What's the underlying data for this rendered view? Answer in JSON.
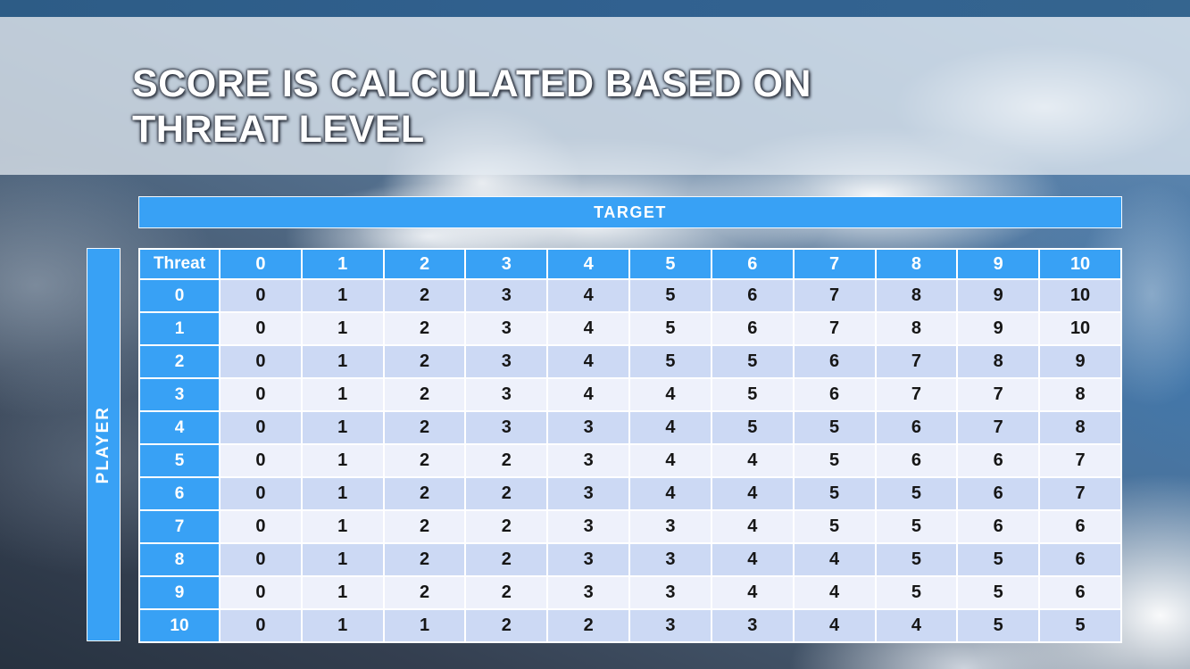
{
  "slide": {
    "title": "SCORE IS CALCULATED BASED ON THREAT LEVEL"
  },
  "chart_data": {
    "type": "table",
    "title": "SCORE IS CALCULATED BASED ON THREAT LEVEL",
    "column_axis_label": "TARGET",
    "row_axis_label": "PLAYER",
    "corner_label": "Threat",
    "column_headers": [
      "0",
      "1",
      "2",
      "3",
      "4",
      "5",
      "6",
      "7",
      "8",
      "9",
      "10"
    ],
    "row_headers": [
      "0",
      "1",
      "2",
      "3",
      "4",
      "5",
      "6",
      "7",
      "8",
      "9",
      "10"
    ],
    "values": [
      [
        0,
        1,
        2,
        3,
        4,
        5,
        6,
        7,
        8,
        9,
        10
      ],
      [
        0,
        1,
        2,
        3,
        4,
        5,
        6,
        7,
        8,
        9,
        10
      ],
      [
        0,
        1,
        2,
        3,
        4,
        5,
        5,
        6,
        7,
        8,
        9
      ],
      [
        0,
        1,
        2,
        3,
        4,
        4,
        5,
        6,
        7,
        7,
        8
      ],
      [
        0,
        1,
        2,
        3,
        3,
        4,
        5,
        5,
        6,
        7,
        8
      ],
      [
        0,
        1,
        2,
        2,
        3,
        4,
        4,
        5,
        6,
        6,
        7
      ],
      [
        0,
        1,
        2,
        2,
        3,
        4,
        4,
        5,
        5,
        6,
        7
      ],
      [
        0,
        1,
        2,
        2,
        3,
        3,
        4,
        5,
        5,
        6,
        6
      ],
      [
        0,
        1,
        2,
        2,
        3,
        3,
        4,
        4,
        5,
        5,
        6
      ],
      [
        0,
        1,
        2,
        2,
        3,
        3,
        4,
        4,
        5,
        5,
        6
      ],
      [
        0,
        1,
        1,
        2,
        2,
        3,
        3,
        4,
        4,
        5,
        5
      ]
    ],
    "legend": "off",
    "grid": "white 2px cell borders"
  },
  "colors": {
    "accent_blue": "#38a1f5",
    "top_bar_blue": "#2d5c86",
    "row_band_dark": "#ccd9f4",
    "row_band_light": "#eef1fb",
    "cell_text": "#161616",
    "header_text": "#ffffff"
  }
}
